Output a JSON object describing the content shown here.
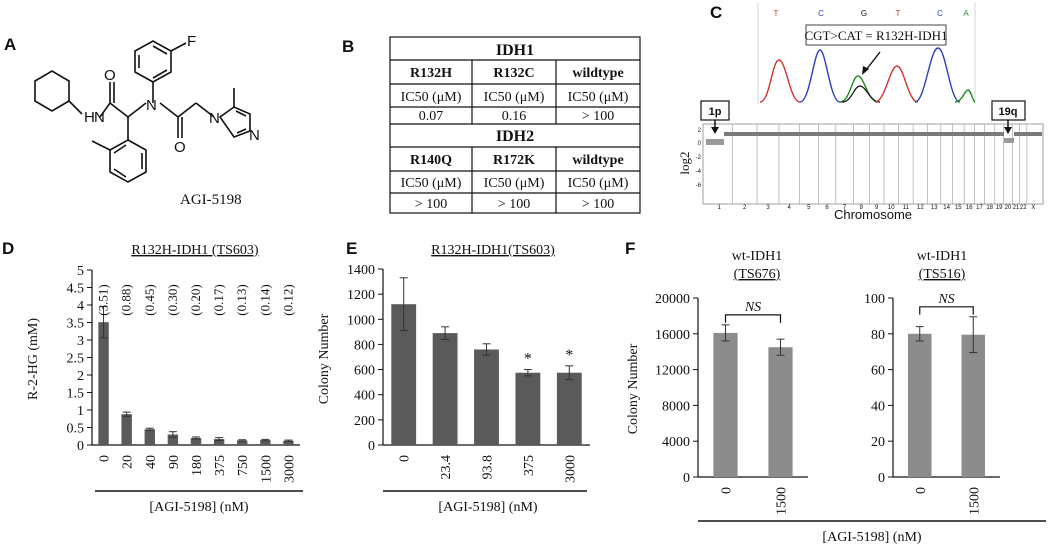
{
  "panels": {
    "A": {
      "letter": "A",
      "compound": "AGI-5198",
      "atoms": {
        "F": "F",
        "N1": "N",
        "N2": "N",
        "N3": "N",
        "N4": "N",
        "H": "H",
        "O1": "O",
        "O2": "O"
      }
    },
    "B": {
      "letter": "B",
      "table": {
        "idh1_title": "IDH1",
        "idh1_headers": [
          "R132H",
          "R132C",
          "wildtype"
        ],
        "idh1_units": [
          "IC50 (μM)",
          "IC50 (μM)",
          "IC50 (μM)"
        ],
        "idh1_values": [
          "0.07",
          "0.16",
          "> 100"
        ],
        "idh2_title": "IDH2",
        "idh2_headers": [
          "R140Q",
          "R172K",
          "wildtype"
        ],
        "idh2_units": [
          "IC50 (μM)",
          "IC50 (μM)",
          "IC50 (μM)"
        ],
        "idh2_values": [
          "> 100",
          "> 100",
          "> 100"
        ]
      }
    },
    "C": {
      "letter": "C",
      "sequence_label": "CGT>CAT = R132H-IDH1",
      "trace_bases": [
        "T",
        "C",
        "G",
        "T",
        "C",
        "A"
      ],
      "marker_1p": "1p",
      "marker_19q": "19q",
      "ylabel": "log2",
      "yticks": [
        "2",
        "0",
        "-2",
        "-4",
        "-6"
      ],
      "xlabel": "Chromosome",
      "chromosomes": [
        "1",
        "2",
        "3",
        "4",
        "5",
        "6",
        "7",
        "8",
        "9",
        "10",
        "11",
        "12",
        "13",
        "14",
        "15",
        "16",
        "17",
        "18",
        "19",
        "20",
        "21",
        "22",
        "X"
      ]
    },
    "D": {
      "letter": "D"
    },
    "E": {
      "letter": "E"
    },
    "F": {
      "letter": "F"
    }
  },
  "chart_data": [
    {
      "panel": "D",
      "type": "bar",
      "title": "R132H-IDH1 (TS603)",
      "categories": [
        "0",
        "20",
        "40",
        "90",
        "180",
        "375",
        "750",
        "1500",
        "3000"
      ],
      "values": [
        3.51,
        0.88,
        0.45,
        0.3,
        0.2,
        0.17,
        0.13,
        0.14,
        0.12
      ],
      "errors": [
        0.45,
        0.06,
        0.03,
        0.08,
        0.03,
        0.04,
        0.02,
        0.02,
        0.02
      ],
      "value_labels": [
        "(3.51)",
        "(0.88)",
        "(0.45)",
        "(0.30)",
        "(0.20)",
        "(0.17)",
        "(0.13)",
        "(0.14)",
        "(0.12)"
      ],
      "ylabel": "R-2-HG (mM)",
      "xlabel": "[AGI-5198] (nM)",
      "ylim": [
        0,
        5
      ],
      "yticks": [
        0,
        0.5,
        1,
        1.5,
        2,
        2.5,
        3,
        3.5,
        4,
        4.5,
        5
      ],
      "ytick_labels": [
        "0",
        "0.5",
        "1",
        "1.5",
        "2",
        "2.5",
        "3",
        "3.5",
        "4",
        "4.5",
        "5"
      ],
      "color": "#5a5a5a"
    },
    {
      "panel": "E",
      "type": "bar",
      "title": "R132H-IDH1(TS603)",
      "categories": [
        "0",
        "23.4",
        "93.8",
        "375",
        "3000"
      ],
      "values": [
        1120,
        890,
        760,
        575,
        575
      ],
      "errors": [
        210,
        50,
        45,
        25,
        55
      ],
      "significance": [
        "",
        "",
        "",
        "*",
        "*"
      ],
      "ylabel": "Colony Number",
      "xlabel": "[AGI-5198] (nM)",
      "ylim": [
        0,
        1400
      ],
      "yticks": [
        0,
        200,
        400,
        600,
        800,
        1000,
        1200,
        1400
      ],
      "color": "#5a5a5a"
    },
    {
      "panel": "F",
      "type": "bar",
      "title": "wt-IDH1 (TS676)",
      "title_lines": [
        "wt-IDH1",
        "(TS676)"
      ],
      "categories": [
        "0",
        "1500"
      ],
      "values": [
        16100,
        14500
      ],
      "errors": [
        900,
        900
      ],
      "significance_label": "NS",
      "ylabel": "Colony Number",
      "ylim": [
        0,
        20000
      ],
      "yticks": [
        0,
        4000,
        8000,
        12000,
        16000,
        20000
      ],
      "color": "#8c8c8c"
    },
    {
      "panel": "F",
      "type": "bar",
      "title": "wt-IDH1 (TS516)",
      "title_lines": [
        "wt-IDH1",
        "(TS516)"
      ],
      "categories": [
        "0",
        "1500"
      ],
      "values": [
        80,
        79.5
      ],
      "errors": [
        4,
        10
      ],
      "significance_label": "NS",
      "ylim": [
        0,
        100
      ],
      "yticks": [
        0,
        20,
        40,
        60,
        80,
        100
      ],
      "color": "#8c8c8c"
    }
  ],
  "panel_F_xlabel": "[AGI-5198] (nM)"
}
